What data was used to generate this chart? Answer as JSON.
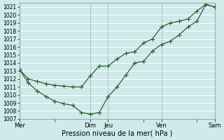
{
  "xlabel": "Pression niveau de la mer( hPa )",
  "bg_color": "#ceeaea",
  "grid_color": "#ffffff",
  "line_color": "#2d5e2d",
  "ylim": [
    1007,
    1021.5
  ],
  "yticks": [
    1007,
    1008,
    1009,
    1010,
    1011,
    1012,
    1013,
    1014,
    1015,
    1016,
    1017,
    1018,
    1019,
    1020,
    1021
  ],
  "xtick_labels": [
    "Mer",
    "",
    "Dim",
    "Jeu",
    "",
    "Ven",
    "",
    "Sam"
  ],
  "xtick_positions": [
    0,
    24,
    48,
    60,
    84,
    96,
    120,
    132
  ],
  "vline_positions": [
    0,
    48,
    60,
    96,
    132
  ],
  "line1_x": [
    0,
    6,
    12,
    18,
    24,
    30,
    36,
    42,
    48,
    54,
    60,
    66,
    72,
    78,
    84,
    90,
    96,
    102,
    108,
    114,
    120,
    126,
    132
  ],
  "line1_y": [
    1013.2,
    1012.0,
    1011.7,
    1011.4,
    1011.2,
    1011.1,
    1011.0,
    1011.0,
    1012.4,
    1013.6,
    1013.6,
    1014.5,
    1015.2,
    1015.4,
    1016.5,
    1017.0,
    1018.5,
    1019.0,
    1019.2,
    1019.5,
    1020.5,
    1021.3,
    1021.0
  ],
  "line2_x": [
    0,
    6,
    12,
    18,
    24,
    30,
    36,
    42,
    48,
    54,
    60,
    66,
    72,
    78,
    84,
    90,
    96,
    102,
    108,
    114,
    120,
    126,
    132
  ],
  "line2_y": [
    1013.2,
    1011.5,
    1010.5,
    1009.8,
    1009.2,
    1008.9,
    1008.7,
    1007.8,
    1007.6,
    1007.8,
    1009.8,
    1011.0,
    1012.5,
    1014.0,
    1014.2,
    1015.5,
    1016.3,
    1016.7,
    1017.5,
    1018.5,
    1019.2,
    1021.3,
    1021.0
  ],
  "xmin": 0,
  "xmax": 132,
  "xlabel_fontsize": 7,
  "ytick_fontsize": 5.5,
  "xtick_fontsize": 6.0,
  "marker_size": 2.2,
  "linewidth": 0.9
}
